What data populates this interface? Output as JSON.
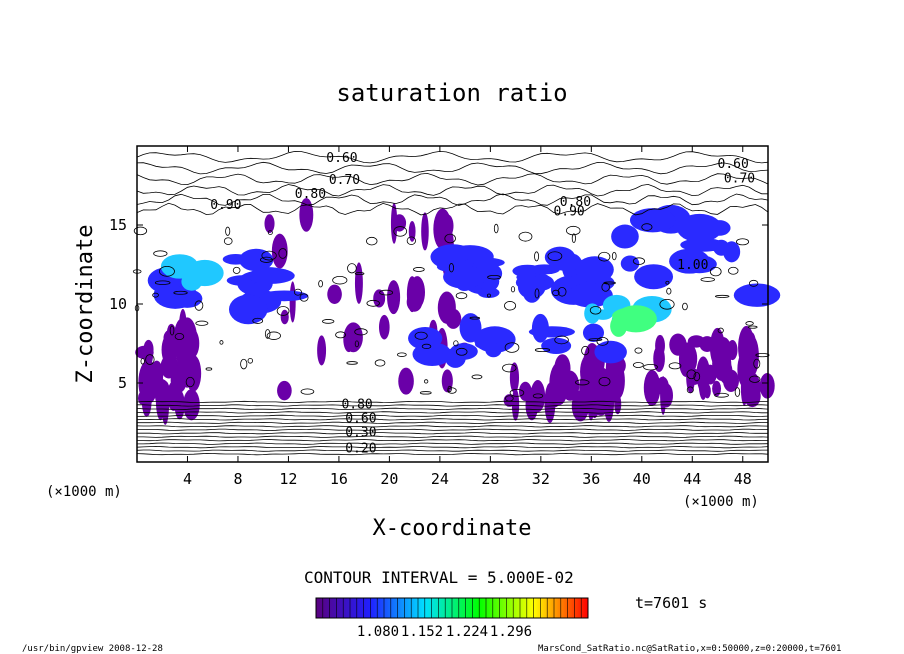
{
  "chart_data": {
    "type": "heatmap",
    "title": "saturation ratio",
    "xlabel": "X-coordinate",
    "ylabel": "Z-coordinate",
    "x_unit": "(×1000 m)",
    "y_unit": "(×1000 m)",
    "xlim": [
      0,
      50
    ],
    "ylim": [
      0,
      20
    ],
    "x_ticks": [
      4,
      8,
      12,
      16,
      20,
      24,
      28,
      32,
      36,
      40,
      44,
      48
    ],
    "y_ticks": [
      5,
      10,
      15
    ],
    "contour_interval_text": "CONTOUR INTERVAL = 5.000E-02",
    "time_text": "t=7601 s",
    "colorbar": {
      "ticks": [
        "1.080",
        "1.152",
        "1.224",
        "1.296"
      ],
      "colors": [
        "#5a007f",
        "#2020ff",
        "#00e0ff",
        "#00ff00",
        "#ffff00",
        "#ff0000"
      ]
    },
    "contour_labels": [
      {
        "text": "0.60",
        "x": 15.0,
        "y": 19.0
      },
      {
        "text": "0.70",
        "x": 15.2,
        "y": 17.6
      },
      {
        "text": "0.80",
        "x": 12.5,
        "y": 16.7
      },
      {
        "text": "0.90",
        "x": 5.8,
        "y": 16.0
      },
      {
        "text": "0.80",
        "x": 33.5,
        "y": 16.2
      },
      {
        "text": "0.90",
        "x": 33.0,
        "y": 15.6
      },
      {
        "text": "0.60",
        "x": 46.0,
        "y": 18.6
      },
      {
        "text": "0.70",
        "x": 46.5,
        "y": 17.7
      },
      {
        "text": "1.00",
        "x": 42.8,
        "y": 12.2
      },
      {
        "text": "0.80",
        "x": 16.2,
        "y": 3.4
      },
      {
        "text": "0.60",
        "x": 16.5,
        "y": 2.5
      },
      {
        "text": "0.30",
        "x": 16.5,
        "y": 1.6
      },
      {
        "text": "0.20",
        "x": 16.5,
        "y": 0.6
      }
    ],
    "regions": [
      {
        "kind": "purple",
        "x": [
          10.5,
          26.0
        ],
        "z": [
          4.5,
          16.0
        ]
      },
      {
        "kind": "purple",
        "x": [
          0.0,
          4.5
        ],
        "z": [
          3.5,
          8.5
        ]
      },
      {
        "kind": "purple",
        "x": [
          29.5,
          38.5
        ],
        "z": [
          3.5,
          6.5
        ]
      },
      {
        "kind": "purple",
        "x": [
          40.5,
          50.0
        ],
        "z": [
          4.0,
          8.0
        ]
      },
      {
        "kind": "blue",
        "x": [
          2.0,
          12.0
        ],
        "z": [
          9.5,
          13.0
        ]
      },
      {
        "kind": "blue",
        "x": [
          25.0,
          28.0
        ],
        "z": [
          10.5,
          13.5
        ]
      },
      {
        "kind": "blue",
        "x": [
          30.5,
          37.0
        ],
        "z": [
          10.5,
          13.0
        ]
      },
      {
        "kind": "blue",
        "x": [
          38.0,
          50.0
        ],
        "z": [
          10.5,
          15.5
        ]
      },
      {
        "kind": "blue",
        "x": [
          22.0,
          38.0
        ],
        "z": [
          6.5,
          9.5
        ]
      },
      {
        "kind": "cyan",
        "x": [
          3.0,
          6.0
        ],
        "z": [
          11.0,
          12.5
        ]
      },
      {
        "kind": "cyan",
        "x": [
          36.0,
          41.0
        ],
        "z": [
          8.0,
          10.5
        ]
      },
      {
        "kind": "green",
        "x": [
          38.0,
          40.0
        ],
        "z": [
          8.5,
          9.5
        ]
      }
    ]
  },
  "footer": {
    "left": "/usr/bin/gpview   2008-12-28",
    "right": "MarsCond_SatRatio.nc@SatRatio,x=0:50000,z=0:20000,t=7601"
  }
}
